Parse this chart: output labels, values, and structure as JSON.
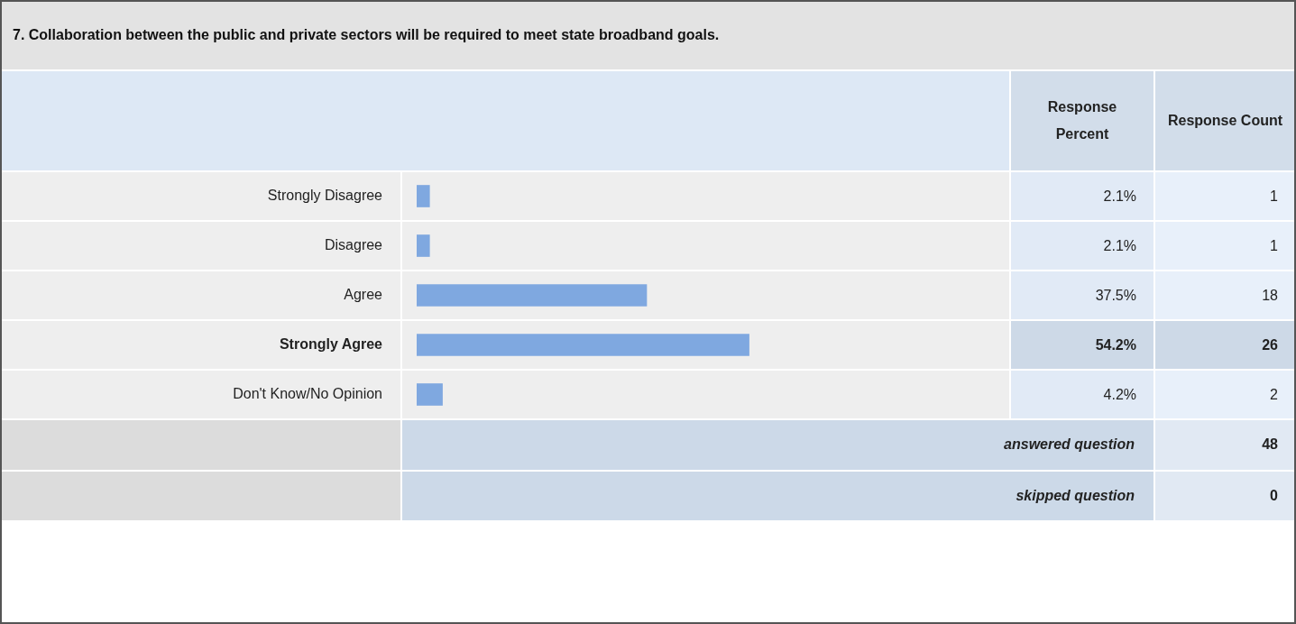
{
  "chart_data": {
    "type": "bar",
    "orientation": "horizontal",
    "title": "7. Collaboration between the public and private sectors will be required to meet state broadband goals.",
    "categories": [
      "Strongly Disagree",
      "Disagree",
      "Agree",
      "Strongly Agree",
      "Don't Know/No Opinion"
    ],
    "values": [
      2.1,
      2.1,
      37.5,
      54.2,
      4.2
    ],
    "value_labels": [
      "2.1%",
      "2.1%",
      "37.5%",
      "54.2%",
      "4.2%"
    ],
    "color": "#7fa8e0",
    "annotations": [
      "Response Percent",
      "Response Count",
      "1",
      "1",
      "18",
      "26",
      "2",
      "answered question",
      "48",
      "skipped question",
      "0"
    ]
  }
}
